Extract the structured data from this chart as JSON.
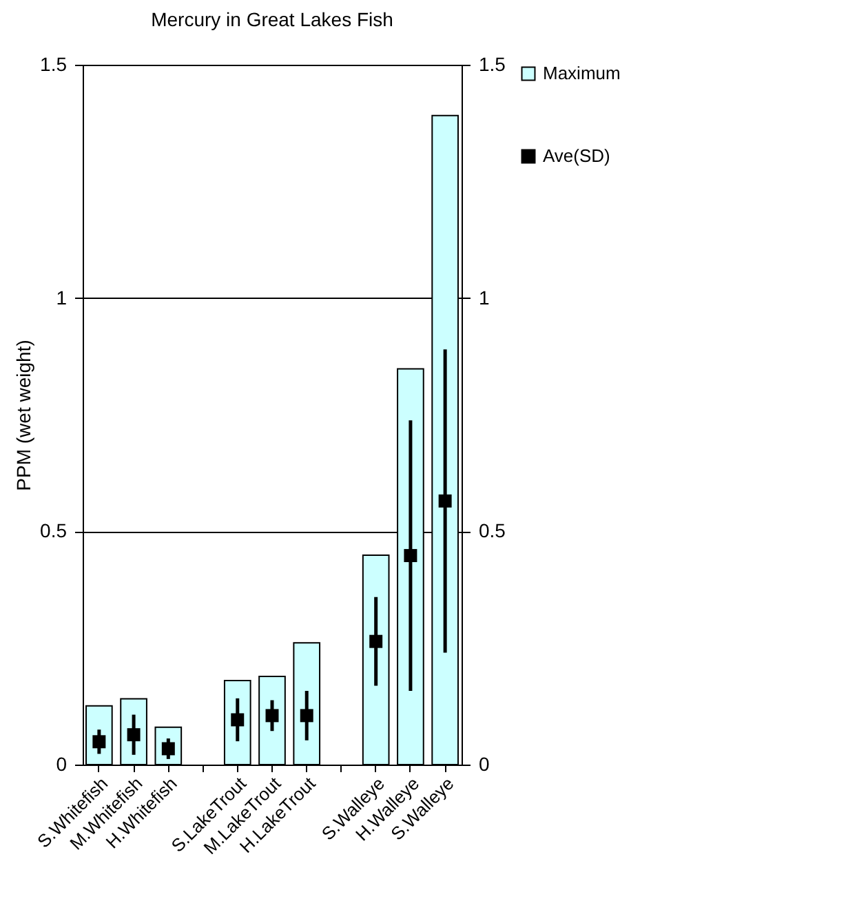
{
  "chart_data": {
    "type": "bar",
    "title": "Mercury in Great Lakes Fish",
    "ylabel": "PPM (wet weight)",
    "categories": [
      "S.Whitefish",
      "M.Whitefish",
      "H.Whitefish",
      null,
      "S.LakeTrout",
      "M.LakeTrout",
      "H.LakeTrout",
      null,
      "S.Walleye",
      "H.Walleye",
      "S.Walleye"
    ],
    "series": [
      {
        "name": "Maximum",
        "color": "#ccffff",
        "values": [
          0.126,
          0.141,
          0.08,
          null,
          0.18,
          0.189,
          0.261,
          null,
          0.449,
          0.848,
          1.391
        ]
      },
      {
        "name": "Ave(SD)",
        "type": "scatter",
        "color": "#000000",
        "marker": "square",
        "values": [
          0.049,
          0.064,
          0.034,
          null,
          0.096,
          0.105,
          0.105,
          null,
          0.264,
          0.448,
          0.565
        ],
        "errors": [
          0.026,
          0.043,
          0.022,
          null,
          0.046,
          0.033,
          0.053,
          null,
          0.095,
          0.29,
          0.325
        ]
      }
    ],
    "ylim": [
      0,
      1.5
    ],
    "yticks": [
      0,
      0.5,
      1,
      1.5
    ],
    "y2lim": [
      0,
      1.5
    ],
    "y2ticks": [
      0,
      0.5,
      1,
      1.5
    ],
    "grid": "y",
    "legend": "right"
  }
}
